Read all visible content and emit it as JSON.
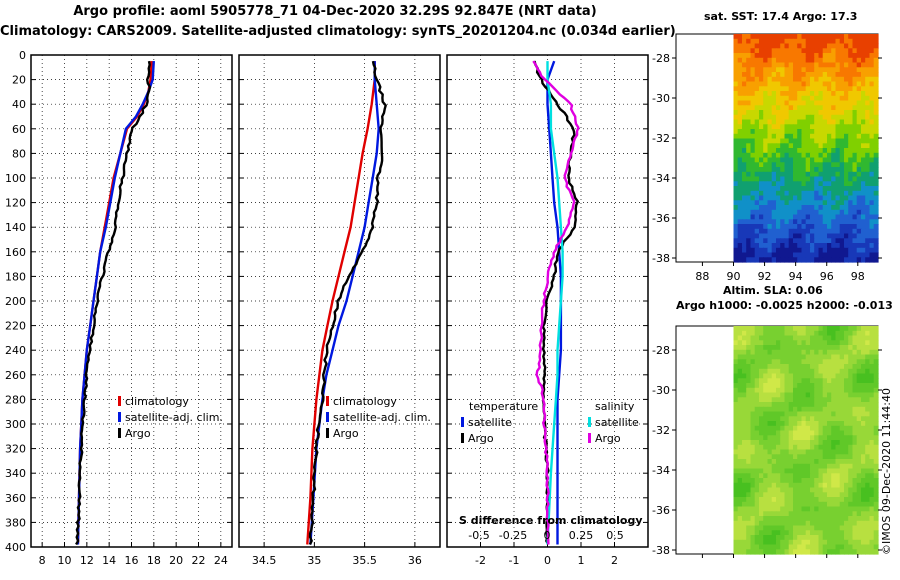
{
  "header": {
    "title_line1": "Argo profile: aoml 5905778_71 04-Dec-2020 32.29S 92.847E (NRT data)",
    "title_line2": "Climatology: CARS2009. Satellite-adjusted climatology: synTS_20201204.nc (0.034d earlier)"
  },
  "colors": {
    "climatology": "#e00000",
    "satellite": "#0018e0",
    "argo": "#000000",
    "cyan": "#00e0e0",
    "magenta": "#e000e0"
  },
  "depth_axis": {
    "ticks": [
      0,
      20,
      40,
      60,
      80,
      100,
      120,
      140,
      160,
      180,
      200,
      220,
      240,
      260,
      280,
      300,
      320,
      340,
      360,
      380,
      400
    ],
    "ylim": [
      0,
      400
    ]
  },
  "chart_data": [
    {
      "type": "line",
      "name": "temperature-profile",
      "xlim": [
        7,
        25
      ],
      "xticks": [
        8,
        10,
        12,
        14,
        16,
        18,
        20,
        22,
        24
      ],
      "legend": {
        "climatology": "climatology",
        "satellite": "satellite-adj. clim.",
        "argo": "Argo"
      },
      "series": [
        {
          "name": "climatology",
          "color_key": "climatology",
          "x": [
            17.8,
            17.7,
            17.5,
            17.1,
            16.5,
            15.6,
            15.0,
            14.4,
            14.0,
            13.6,
            13.2,
            12.9,
            12.6,
            12.3,
            12.0,
            11.8,
            11.6,
            11.5,
            11.4,
            11.3,
            11.2
          ],
          "y": [
            5,
            20,
            30,
            40,
            50,
            60,
            80,
            100,
            120,
            140,
            160,
            180,
            200,
            220,
            240,
            260,
            280,
            300,
            320,
            360,
            398
          ]
        },
        {
          "name": "satellite",
          "color_key": "satellite",
          "x": [
            18.0,
            17.9,
            17.5,
            17.0,
            16.4,
            15.5,
            15.0,
            14.5,
            14.1,
            13.7,
            13.2,
            12.9,
            12.6,
            12.3,
            12.0,
            11.8,
            11.6,
            11.5,
            11.4,
            11.3,
            11.2
          ],
          "y": [
            5,
            20,
            30,
            40,
            50,
            60,
            80,
            100,
            120,
            140,
            160,
            180,
            200,
            220,
            240,
            260,
            280,
            300,
            320,
            360,
            398
          ]
        },
        {
          "name": "argo",
          "color_key": "argo",
          "x": [
            17.6,
            17.5,
            17.6,
            17.3,
            16.8,
            16.1,
            15.6,
            15.2,
            14.8,
            14.5,
            14.3,
            13.9,
            13.4,
            12.9,
            12.6,
            12.3,
            12.0,
            11.8,
            11.6,
            11.4,
            11.3,
            11.1
          ],
          "y": [
            5,
            20,
            30,
            40,
            50,
            60,
            80,
            100,
            120,
            140,
            150,
            160,
            180,
            200,
            220,
            240,
            260,
            280,
            300,
            340,
            370,
            398
          ]
        }
      ]
    },
    {
      "type": "line",
      "name": "salinity-profile",
      "xlim": [
        34.25,
        36.25
      ],
      "xticks": [
        34.5,
        35,
        35.5,
        36
      ],
      "xtick_labels": [
        "34.5",
        "35",
        "35.5",
        "36"
      ],
      "legend": {
        "climatology": "climatology",
        "satellite": "satellite-adj. clim.",
        "argo": "Argo"
      },
      "series": [
        {
          "name": "climatology",
          "color_key": "climatology",
          "x": [
            35.6,
            35.6,
            35.57,
            35.53,
            35.48,
            35.44,
            35.4,
            35.36,
            35.3,
            35.24,
            35.18,
            35.13,
            35.08,
            35.05,
            35.02,
            35.0,
            34.98,
            34.96,
            34.93
          ],
          "y": [
            5,
            20,
            40,
            60,
            80,
            100,
            120,
            140,
            160,
            180,
            200,
            220,
            240,
            260,
            280,
            300,
            320,
            360,
            398
          ]
        },
        {
          "name": "satellite",
          "color_key": "satellite",
          "x": [
            35.6,
            35.6,
            35.62,
            35.64,
            35.62,
            35.58,
            35.54,
            35.5,
            35.44,
            35.38,
            35.32,
            35.24,
            35.18,
            35.12,
            35.08,
            35.05,
            35.02,
            34.99,
            34.96
          ],
          "y": [
            5,
            20,
            40,
            60,
            80,
            100,
            120,
            140,
            160,
            180,
            200,
            220,
            240,
            260,
            280,
            300,
            320,
            360,
            398
          ]
        },
        {
          "name": "argo",
          "color_key": "argo",
          "x": [
            35.58,
            35.62,
            35.7,
            35.66,
            35.68,
            35.63,
            35.62,
            35.58,
            35.48,
            35.34,
            35.24,
            35.18,
            35.12,
            35.1,
            35.08,
            35.04,
            35.02,
            34.99,
            34.96
          ],
          "y": [
            5,
            20,
            40,
            60,
            80,
            100,
            120,
            140,
            160,
            180,
            200,
            220,
            240,
            260,
            280,
            300,
            320,
            360,
            398
          ]
        }
      ]
    },
    {
      "type": "line",
      "name": "difference-profile",
      "xlim": [
        -3,
        3
      ],
      "xticks": [
        -2,
        -1,
        0,
        1,
        2
      ],
      "xtick_labels": [
        "-2",
        "-1",
        "0",
        "1",
        "2"
      ],
      "top_axis_label": "S difference from climatology",
      "top_ticks": [
        -0.5,
        -0.25,
        0,
        0.25,
        0.5
      ],
      "top_tick_labels": [
        "-0.5",
        "-0.25",
        "0",
        "0.25",
        "0.5"
      ],
      "legend": {
        "temperature_heading": "temperature",
        "salinity_heading": "salinity",
        "satellite": "satellite",
        "argo": "Argo"
      },
      "series": [
        {
          "name": "temperature-satellite",
          "color_key": "satellite",
          "x": [
            0.2,
            0.0,
            0.0,
            0.05,
            0.1,
            0.15,
            0.2,
            0.3,
            0.35,
            0.4,
            0.4,
            0.4,
            0.4,
            0.35,
            0.3,
            0.3,
            0.3,
            0.3
          ],
          "y": [
            5,
            20,
            40,
            60,
            80,
            100,
            120,
            140,
            160,
            180,
            200,
            220,
            240,
            260,
            280,
            300,
            340,
            398
          ]
        },
        {
          "name": "temperature-argo",
          "color_key": "argo",
          "x": [
            -0.4,
            -0.2,
            0.3,
            0.8,
            0.7,
            0.6,
            0.9,
            0.8,
            0.3,
            0.2,
            0.0,
            -0.1,
            -0.1,
            -0.1,
            -0.1,
            -0.1,
            0.0,
            0.0,
            0.0
          ],
          "y": [
            5,
            20,
            40,
            60,
            80,
            100,
            120,
            140,
            160,
            180,
            200,
            220,
            240,
            260,
            280,
            300,
            340,
            370,
            398
          ]
        },
        {
          "name": "salinity-satellite",
          "color_key": "cyan",
          "x": [
            0.0,
            0.0,
            0.1,
            0.1,
            0.2,
            0.3,
            0.35,
            0.4,
            0.45,
            0.45,
            0.4,
            0.35,
            0.3,
            0.3,
            0.25,
            0.2,
            0.1,
            0.0
          ],
          "y": [
            5,
            20,
            40,
            60,
            80,
            100,
            120,
            140,
            160,
            180,
            200,
            220,
            240,
            260,
            280,
            300,
            340,
            398
          ]
        },
        {
          "name": "salinity-argo",
          "color_key": "magenta",
          "x": [
            -0.4,
            -0.1,
            0.7,
            0.9,
            0.7,
            0.5,
            0.8,
            0.6,
            0.2,
            0.0,
            -0.1,
            -0.2,
            -0.2,
            -0.3,
            -0.1,
            -0.1,
            0.0,
            0.0,
            0.0
          ],
          "y": [
            5,
            20,
            40,
            60,
            80,
            100,
            120,
            140,
            160,
            180,
            200,
            220,
            240,
            260,
            280,
            300,
            340,
            370,
            398
          ]
        }
      ]
    },
    {
      "type": "heatmap",
      "name": "sst-map",
      "title": "sat. SST: 17.4 Argo: 17.3",
      "xticks": [
        88,
        90,
        92,
        94,
        96,
        98
      ],
      "yticks": [
        -28,
        -30,
        -32,
        -34,
        -36,
        -38
      ],
      "xlim": [
        86.3,
        99.3
      ],
      "ylim": [
        -38.2,
        -26.8
      ],
      "data_xlim": [
        90,
        99.3
      ],
      "band_colors": [
        "#e84000",
        "#f87800",
        "#f8a000",
        "#f0c800",
        "#c8d800",
        "#80d000",
        "#30b830",
        "#10a070",
        "#1090c8",
        "#2060d0",
        "#1838b8",
        "#101890"
      ]
    },
    {
      "type": "heatmap",
      "name": "sla-map",
      "title_line1": "Altim. SLA: 0.06",
      "title_line2": "Argo h1000: -0.0025 h2000: -0.013",
      "yticks": [
        -28,
        -30,
        -32,
        -34,
        -36,
        -38
      ],
      "xlim": [
        86.3,
        99.3
      ],
      "ylim": [
        -38.2,
        -26.8
      ],
      "data_xlim": [
        90,
        99.3
      ]
    }
  ],
  "watermark": "©IMOS 09-Dec-2020 11:44:40"
}
